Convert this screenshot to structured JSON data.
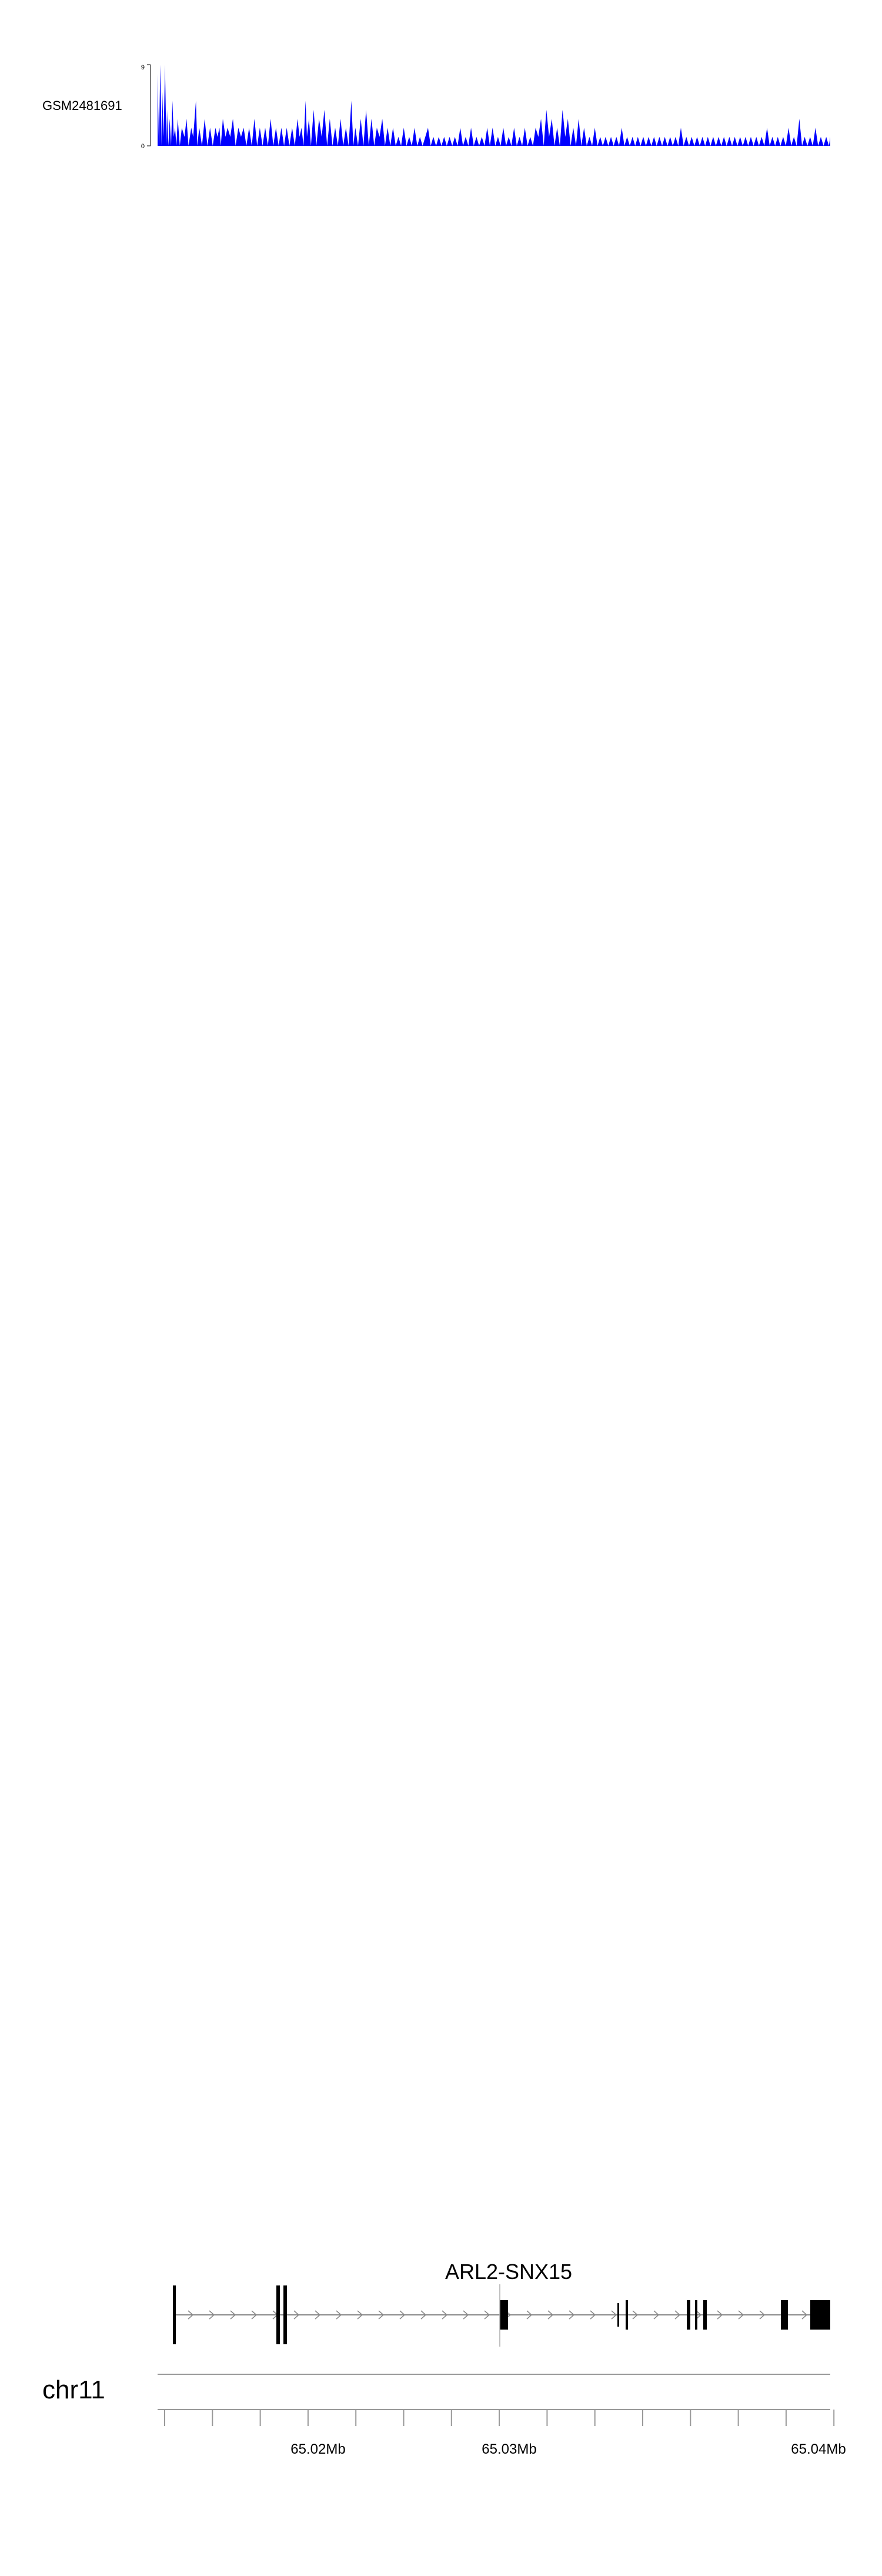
{
  "chart_data": {
    "type": "area",
    "chromosome": "chr11",
    "gene": "ARL2-SNX15",
    "x_ticks": [
      "65.02Mb",
      "65.03Mb",
      "65.04Mb"
    ],
    "color": "#0000ff",
    "tracks": [
      {
        "name": "GSM2481691",
        "ymax": 9,
        "points": [
          [
            0,
            8
          ],
          [
            2,
            0
          ],
          [
            4,
            9
          ],
          [
            6,
            0
          ],
          [
            7,
            6
          ],
          [
            9,
            1
          ],
          [
            11,
            9
          ],
          [
            13,
            0
          ],
          [
            14,
            4
          ],
          [
            16,
            0
          ],
          [
            18,
            3
          ],
          [
            20,
            0
          ],
          [
            22,
            5
          ],
          [
            24,
            1
          ],
          [
            26,
            2
          ],
          [
            28,
            0
          ],
          [
            30,
            3
          ],
          [
            33,
            0
          ],
          [
            36,
            2
          ],
          [
            40,
            1
          ],
          [
            43,
            3
          ],
          [
            46,
            0
          ],
          [
            50,
            2
          ],
          [
            53,
            1
          ],
          [
            57,
            5
          ],
          [
            59,
            0
          ],
          [
            62,
            2
          ],
          [
            66,
            0
          ],
          [
            70,
            3
          ],
          [
            74,
            0
          ],
          [
            78,
            2
          ],
          [
            82,
            0
          ],
          [
            86,
            2
          ],
          [
            89,
            1
          ],
          [
            92,
            2
          ],
          [
            94,
            0
          ],
          [
            97,
            3
          ],
          [
            101,
            1
          ],
          [
            104,
            2
          ],
          [
            108,
            1
          ],
          [
            112,
            3
          ],
          [
            116,
            0
          ],
          [
            120,
            2
          ],
          [
            124,
            1
          ],
          [
            128,
            2
          ],
          [
            132,
            0
          ],
          [
            136,
            2
          ],
          [
            140,
            0
          ],
          [
            144,
            3
          ],
          [
            148,
            0
          ],
          [
            152,
            2
          ],
          [
            156,
            0
          ],
          [
            160,
            2
          ],
          [
            164,
            0
          ],
          [
            168,
            3
          ],
          [
            172,
            0
          ],
          [
            176,
            2
          ],
          [
            180,
            0
          ],
          [
            184,
            2
          ],
          [
            188,
            0
          ],
          [
            192,
            2
          ],
          [
            196,
            0
          ],
          [
            200,
            2
          ],
          [
            204,
            0
          ],
          [
            208,
            3
          ],
          [
            211,
            1
          ],
          [
            214,
            2
          ],
          [
            217,
            0
          ],
          [
            220,
            5
          ],
          [
            222,
            1
          ],
          [
            225,
            3
          ],
          [
            228,
            0
          ],
          [
            232,
            4
          ],
          [
            236,
            0
          ],
          [
            240,
            3
          ],
          [
            244,
            1
          ],
          [
            248,
            4
          ],
          [
            252,
            0
          ],
          [
            256,
            3
          ],
          [
            260,
            0
          ],
          [
            264,
            2
          ],
          [
            268,
            0
          ],
          [
            272,
            3
          ],
          [
            276,
            0
          ],
          [
            280,
            2
          ],
          [
            284,
            0
          ],
          [
            288,
            5
          ],
          [
            291,
            0
          ],
          [
            294,
            2
          ],
          [
            298,
            0
          ],
          [
            302,
            3
          ],
          [
            306,
            0
          ],
          [
            310,
            4
          ],
          [
            314,
            0
          ],
          [
            318,
            3
          ],
          [
            322,
            0
          ],
          [
            326,
            2
          ],
          [
            330,
            1
          ],
          [
            334,
            3
          ],
          [
            338,
            0
          ],
          [
            342,
            2
          ],
          [
            346,
            0
          ],
          [
            350,
            2
          ],
          [
            354,
            0
          ],
          [
            358,
            1
          ],
          [
            362,
            0
          ],
          [
            366,
            2
          ],
          [
            370,
            0
          ],
          [
            374,
            1
          ],
          [
            378,
            0
          ],
          [
            382,
            2
          ],
          [
            386,
            0
          ],
          [
            390,
            1
          ],
          [
            394,
            0
          ],
          [
            398,
            1
          ],
          [
            402,
            2
          ],
          [
            406,
            0
          ],
          [
            410,
            1
          ],
          [
            414,
            0
          ],
          [
            418,
            1
          ],
          [
            422,
            0
          ],
          [
            426,
            1
          ],
          [
            430,
            0
          ],
          [
            434,
            1
          ],
          [
            438,
            0
          ],
          [
            442,
            1
          ],
          [
            446,
            0
          ],
          [
            450,
            2
          ],
          [
            454,
            0
          ],
          [
            458,
            1
          ],
          [
            462,
            0
          ],
          [
            466,
            2
          ],
          [
            470,
            0
          ],
          [
            474,
            1
          ],
          [
            478,
            0
          ],
          [
            482,
            1
          ],
          [
            486,
            0
          ],
          [
            490,
            2
          ],
          [
            494,
            0
          ],
          [
            498,
            2
          ],
          [
            502,
            0
          ],
          [
            506,
            1
          ],
          [
            510,
            0
          ],
          [
            514,
            2
          ],
          [
            518,
            0
          ],
          [
            522,
            1
          ],
          [
            526,
            0
          ],
          [
            530,
            2
          ],
          [
            534,
            0
          ],
          [
            538,
            1
          ],
          [
            542,
            0
          ],
          [
            546,
            2
          ],
          [
            550,
            0
          ],
          [
            554,
            1
          ],
          [
            558,
            0
          ],
          [
            562,
            2
          ],
          [
            566,
            1
          ],
          [
            570,
            3
          ],
          [
            574,
            0
          ],
          [
            578,
            4
          ],
          [
            582,
            1
          ],
          [
            586,
            3
          ],
          [
            590,
            0
          ],
          [
            594,
            2
          ],
          [
            598,
            0
          ],
          [
            602,
            4
          ],
          [
            606,
            1
          ],
          [
            610,
            3
          ],
          [
            614,
            0
          ],
          [
            618,
            2
          ],
          [
            622,
            0
          ],
          [
            626,
            3
          ],
          [
            630,
            0
          ],
          [
            634,
            2
          ],
          [
            638,
            0
          ],
          [
            642,
            1
          ],
          [
            646,
            0
          ],
          [
            650,
            2
          ],
          [
            654,
            0
          ],
          [
            658,
            1
          ],
          [
            662,
            0
          ],
          [
            666,
            1
          ],
          [
            670,
            0
          ],
          [
            674,
            1
          ],
          [
            678,
            0
          ],
          [
            682,
            1
          ],
          [
            686,
            0
          ],
          [
            690,
            2
          ],
          [
            694,
            0
          ],
          [
            698,
            1
          ],
          [
            702,
            0
          ],
          [
            706,
            1
          ],
          [
            710,
            0
          ],
          [
            714,
            1
          ],
          [
            718,
            0
          ],
          [
            722,
            1
          ],
          [
            726,
            0
          ],
          [
            730,
            1
          ],
          [
            734,
            0
          ],
          [
            738,
            1
          ],
          [
            742,
            0
          ],
          [
            746,
            1
          ],
          [
            750,
            0
          ],
          [
            754,
            1
          ],
          [
            758,
            0
          ],
          [
            762,
            1
          ],
          [
            766,
            0
          ],
          [
            770,
            1
          ],
          [
            774,
            0
          ],
          [
            778,
            2
          ],
          [
            782,
            0
          ],
          [
            786,
            1
          ],
          [
            790,
            0
          ],
          [
            794,
            1
          ],
          [
            798,
            0
          ],
          [
            802,
            1
          ],
          [
            806,
            0
          ],
          [
            810,
            1
          ],
          [
            814,
            0
          ],
          [
            818,
            1
          ],
          [
            822,
            0
          ],
          [
            826,
            1
          ],
          [
            830,
            0
          ],
          [
            834,
            1
          ],
          [
            838,
            0
          ],
          [
            842,
            1
          ],
          [
            846,
            0
          ],
          [
            850,
            1
          ],
          [
            854,
            0
          ],
          [
            858,
            1
          ],
          [
            862,
            0
          ],
          [
            866,
            1
          ],
          [
            870,
            0
          ],
          [
            874,
            1
          ],
          [
            878,
            0
          ],
          [
            882,
            1
          ],
          [
            886,
            0
          ],
          [
            890,
            1
          ],
          [
            894,
            0
          ],
          [
            898,
            1
          ],
          [
            902,
            0
          ],
          [
            906,
            2
          ],
          [
            910,
            0
          ],
          [
            914,
            1
          ],
          [
            918,
            0
          ],
          [
            922,
            1
          ],
          [
            926,
            0
          ],
          [
            930,
            1
          ],
          [
            934,
            0
          ],
          [
            938,
            2
          ],
          [
            942,
            0
          ],
          [
            946,
            1
          ],
          [
            950,
            0
          ],
          [
            954,
            3
          ],
          [
            958,
            0
          ],
          [
            962,
            1
          ],
          [
            966,
            0
          ],
          [
            970,
            1
          ],
          [
            974,
            0
          ],
          [
            978,
            2
          ],
          [
            982,
            0
          ],
          [
            986,
            1
          ],
          [
            990,
            0
          ],
          [
            994,
            1
          ],
          [
            998,
            0
          ],
          [
            1000,
            1
          ]
        ]
      }
    ]
  }
}
